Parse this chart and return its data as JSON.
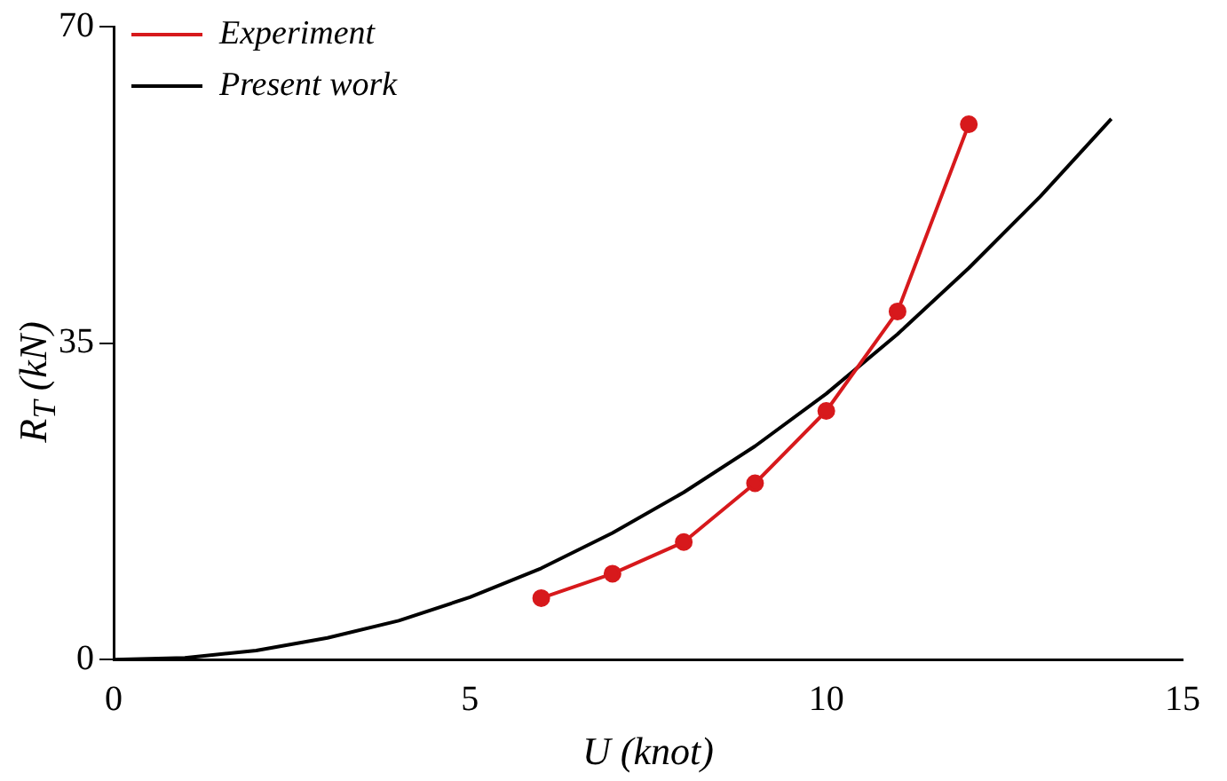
{
  "chart_data": {
    "type": "line",
    "xlabel": "U (knot)",
    "ylabel": "R$_{T}$ (kN)",
    "xlim": [
      0,
      15
    ],
    "xticks": [
      0,
      5,
      10,
      15
    ],
    "ylim": [
      0,
      70
    ],
    "yticks": [
      0,
      35,
      70
    ],
    "grid": false,
    "legend": "top left",
    "series": [
      {
        "name": "Experiment",
        "color": "#d7191c",
        "marker": "circle",
        "x": [
          6,
          7,
          8,
          9,
          10,
          11,
          12
        ],
        "values": [
          6.8,
          9.5,
          13,
          19.5,
          27.5,
          38.5,
          59.2
        ]
      },
      {
        "name": "Present work",
        "color": "#000000",
        "marker": "none",
        "x": [
          0,
          1,
          2,
          3,
          4,
          5,
          6,
          7,
          8,
          9,
          10,
          11,
          12,
          13,
          14
        ],
        "values": [
          0,
          0.2,
          1,
          2.4,
          4.3,
          6.9,
          10.1,
          14,
          18.5,
          23.6,
          29.4,
          36,
          43.3,
          51.2,
          59.8
        ]
      }
    ]
  }
}
